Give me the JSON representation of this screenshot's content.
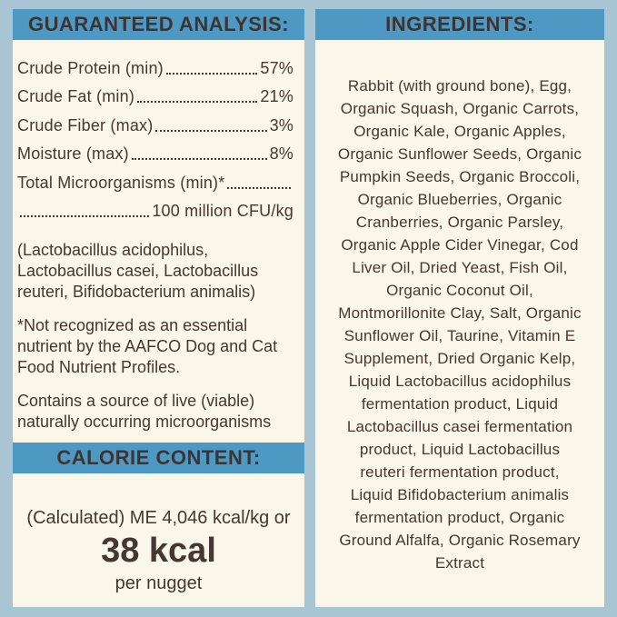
{
  "colors": {
    "frame_background": "#A9C4D3",
    "header_bar": "#4D99C4",
    "panel_background": "#FAF6E9",
    "text": "#453731"
  },
  "left_panel": {
    "header": "GUARANTEED ANALYSIS:",
    "analysis_rows": [
      {
        "label": "Crude Protein (min)",
        "value": "57%"
      },
      {
        "label": "Crude Fat (min)",
        "value": "21%"
      },
      {
        "label": "Crude Fiber (max)",
        "value": "3%"
      },
      {
        "label": "Moisture (max)",
        "value": "8%"
      },
      {
        "label": "Total Microorganisms (min)*",
        "value": ""
      },
      {
        "label": "",
        "value": "100 million CFU/kg"
      }
    ],
    "notes": [
      "(Lactobacillus acidophilus,\nLactobacillus casei, Lactobacillus\nreuteri, Bifidobacterium animalis)",
      "*Not recognized as an essential\nnutrient by the AAFCO Dog and Cat\nFood Nutrient Profiles.",
      "Contains a source of live (viable)\nnaturally occurring microorganisms"
    ],
    "calorie": {
      "header": "CALORIE CONTENT:",
      "line": "(Calculated) ME 4,046 kcal/kg or",
      "big": "38 kcal",
      "sub": "per nugget"
    }
  },
  "right_panel": {
    "header": "INGREDIENTS:",
    "ingredients": "Rabbit (with ground bone), Egg,\nOrganic Squash, Organic Carrots,\nOrganic Kale, Organic Apples,\nOrganic Sunflower Seeds, Organic\nPumpkin Seeds, Organic Broccoli,\nOrganic Blueberries, Organic\nCranberries, Organic Parsley,\nOrganic Apple Cider Vinegar, Cod\nLiver Oil, Dried Yeast, Fish Oil,\nOrganic Coconut Oil,\nMontmorillonite Clay, Salt, Organic\nSunflower Oil, Taurine, Vitamin E\nSupplement, Dried Organic Kelp,\nLiquid Lactobacillus acidophilus\nfermentation product, Liquid\nLactobacillus casei fermentation\nproduct, Liquid Lactobacillus\nreuteri fermentation product,\nLiquid Bifidobacterium animalis\nfermentation product, Organic\nGround Alfalfa, Organic Rosemary\nExtract"
  }
}
